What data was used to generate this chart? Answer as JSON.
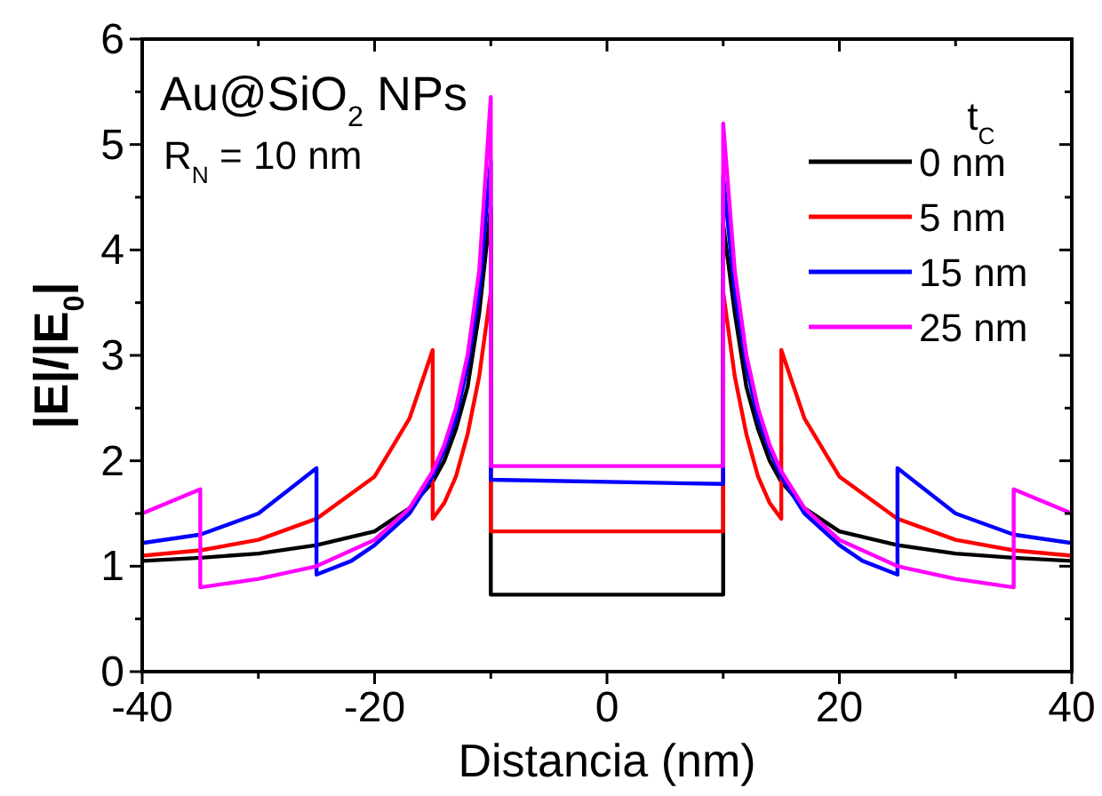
{
  "chart_data": {
    "type": "line",
    "xlabel": "Distancia (nm)",
    "ylabel": "|E|/|E$_{0}$|",
    "legend_title": "t$_{C}$",
    "legend": "top right",
    "grid": false,
    "line_style": "solid",
    "marker": "none",
    "annotations": [
      "Au@SiO$_{2}$ NPs",
      "R$_{N}$ = 10 nm"
    ],
    "xlim": [
      -40,
      40
    ],
    "ylim": [
      0,
      6
    ],
    "xticks": [
      -40,
      {
        "value": -30,
        "label": null
      },
      -20,
      {
        "value": -10,
        "label": null
      },
      0,
      {
        "value": 10,
        "label": null
      },
      20,
      {
        "value": 30,
        "label": null
      },
      40
    ],
    "yticks": [
      0,
      {
        "value": 0.5,
        "label": null
      },
      1,
      {
        "value": 1.5,
        "label": null
      },
      2,
      {
        "value": 2.5,
        "label": null
      },
      3,
      {
        "value": 3.5,
        "label": null
      },
      4,
      {
        "value": 4.5,
        "label": null
      },
      5,
      {
        "value": 5.5,
        "label": null
      },
      6
    ],
    "series": [
      {
        "name": "0 nm",
        "color": "#000000",
        "x": [
          -40,
          -35,
          -30,
          -25,
          -20,
          -17,
          -15,
          -14,
          -13,
          -12,
          -11,
          -10,
          -10,
          10,
          10,
          11,
          12,
          13,
          14,
          15,
          17,
          20,
          25,
          30,
          35,
          40
        ],
        "values": [
          1.05,
          1.08,
          1.12,
          1.2,
          1.33,
          1.55,
          1.8,
          2.0,
          2.3,
          2.7,
          3.4,
          4.4,
          0.73,
          0.73,
          4.25,
          3.4,
          2.7,
          2.3,
          2.0,
          1.8,
          1.55,
          1.33,
          1.2,
          1.12,
          1.08,
          1.05
        ]
      },
      {
        "name": "5 nm",
        "color": "#ff0000",
        "x": [
          -40,
          -35,
          -30,
          -25,
          -20,
          -17,
          -15,
          -15,
          -14,
          -13,
          -12,
          -11,
          -10,
          -10,
          10,
          10,
          11,
          12,
          13,
          14,
          15,
          15,
          17,
          20,
          25,
          30,
          35,
          40
        ],
        "values": [
          1.1,
          1.15,
          1.25,
          1.45,
          1.85,
          2.4,
          3.05,
          1.45,
          1.6,
          1.85,
          2.25,
          2.8,
          3.6,
          1.33,
          1.33,
          3.6,
          2.8,
          2.25,
          1.85,
          1.6,
          1.45,
          3.05,
          2.4,
          1.85,
          1.45,
          1.25,
          1.15,
          1.1
        ]
      },
      {
        "name": "15 nm",
        "color": "#0000ff",
        "x": [
          -40,
          -35,
          -30,
          -25,
          -25,
          -22,
          -20,
          -17,
          -15,
          -14,
          -13,
          -12,
          -11,
          -10,
          -10,
          10,
          10,
          11,
          12,
          13,
          14,
          15,
          17,
          20,
          22,
          25,
          25,
          30,
          35,
          40
        ],
        "values": [
          1.22,
          1.3,
          1.5,
          1.93,
          0.92,
          1.05,
          1.2,
          1.5,
          1.85,
          2.1,
          2.4,
          2.9,
          3.6,
          4.85,
          1.82,
          1.78,
          4.7,
          3.6,
          2.9,
          2.4,
          2.1,
          1.85,
          1.5,
          1.2,
          1.05,
          0.92,
          1.93,
          1.5,
          1.3,
          1.22
        ]
      },
      {
        "name": "25 nm",
        "color": "#ff00ff",
        "x": [
          -40,
          -35,
          -35,
          -30,
          -25,
          -20,
          -17,
          -15,
          -14,
          -13,
          -12,
          -11,
          -10,
          -10,
          10,
          10,
          11,
          12,
          13,
          14,
          15,
          17,
          20,
          25,
          30,
          35,
          35,
          40
        ],
        "values": [
          1.5,
          1.73,
          0.8,
          0.88,
          1.0,
          1.25,
          1.55,
          1.9,
          2.15,
          2.5,
          3.0,
          3.8,
          5.45,
          1.95,
          1.95,
          5.2,
          3.8,
          3.0,
          2.5,
          2.15,
          1.9,
          1.55,
          1.25,
          1.0,
          0.88,
          0.8,
          1.73,
          1.5
        ]
      }
    ]
  }
}
